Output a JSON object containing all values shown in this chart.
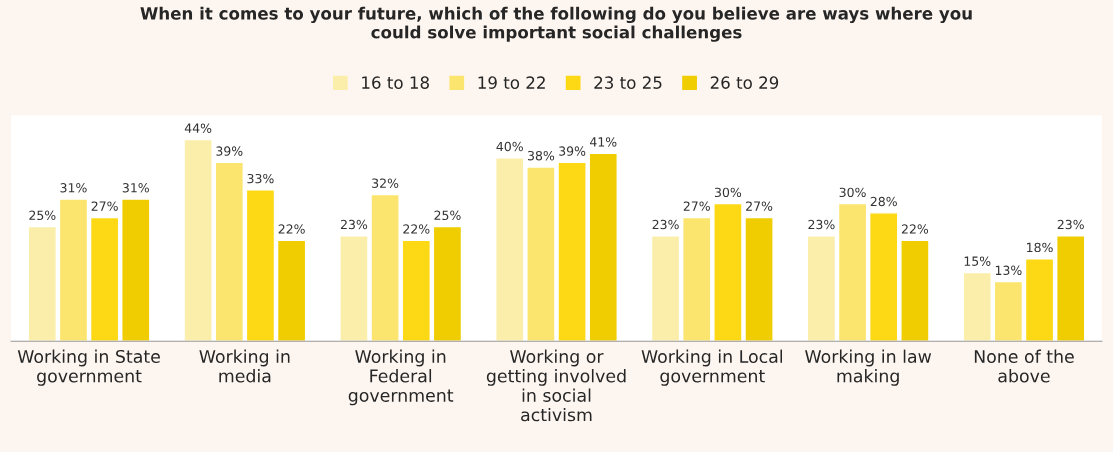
{
  "chart_data": {
    "type": "bar",
    "title": "When it comes to your future, which of the following do you believe are ways where you\ncould solve important social challenges",
    "categories": [
      "Working in State\ngovernment",
      "Working in\nmedia",
      "Working in\nFederal\ngovernment",
      "Working or\ngetting involved\nin social\nactivism",
      "Working in Local\ngovernment",
      "Working in law\nmaking",
      "None of the\nabove"
    ],
    "series": [
      {
        "name": "16 to 18",
        "color": "#fbeeaa",
        "values": [
          25,
          44,
          23,
          40,
          23,
          23,
          15
        ],
        "value_labels": [
          "25%",
          "44%",
          "23%",
          "40%",
          "23%",
          "23%",
          "15%"
        ]
      },
      {
        "name": "19 to 22",
        "color": "#fce56e",
        "values": [
          31,
          39,
          32,
          38,
          27,
          30,
          13
        ],
        "value_labels": [
          "31%",
          "39%",
          "32%",
          "38%",
          "27%",
          "30%",
          "13%"
        ]
      },
      {
        "name": "23 to 25",
        "color": "#fdd814",
        "values": [
          27,
          33,
          22,
          39,
          30,
          28,
          18
        ],
        "value_labels": [
          "27%",
          "33%",
          "22%",
          "39%",
          "30%",
          "28%",
          "18%"
        ]
      },
      {
        "name": "26 to 29",
        "color": "#f0cd00",
        "values": [
          31,
          22,
          25,
          41,
          27,
          22,
          23
        ],
        "value_labels": [
          "31%",
          "22%",
          "25%",
          "41%",
          "27%",
          "22%",
          "23%"
        ]
      }
    ],
    "legend": "top",
    "grid": false
  }
}
